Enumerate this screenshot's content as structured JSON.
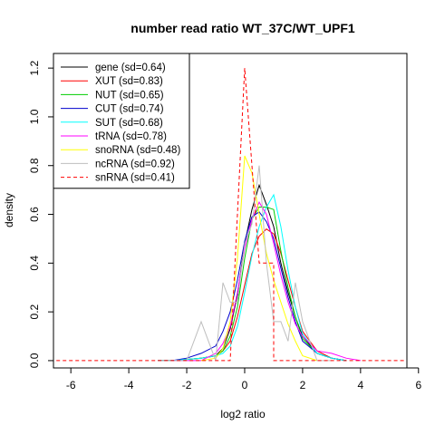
{
  "chart_data": {
    "type": "line",
    "title": "number read ratio WT_37C/WT_UPF1",
    "xlabel": "log2 ratio",
    "ylabel": "density",
    "xlim": [
      -6.6,
      5.6
    ],
    "ylim": [
      -0.03,
      1.26
    ],
    "xticks": [
      -6,
      -4,
      -2,
      0,
      2,
      4,
      6
    ],
    "yticks": [
      0.0,
      0.2,
      0.4,
      0.6,
      0.8,
      1.0,
      1.2
    ],
    "xtick_labels": [
      "-6",
      "-4",
      "-2",
      "0",
      "2",
      "4",
      "6"
    ],
    "ytick_labels": [
      "0.0",
      "0.2",
      "0.4",
      "0.6",
      "0.8",
      "1.0",
      "1.2"
    ],
    "legend_position": "top-left",
    "grid": false,
    "series": [
      {
        "name": "gene (sd=0.64)",
        "color": "#000000",
        "dash": false,
        "x": [
          -3.0,
          -2.5,
          -2.0,
          -1.5,
          -1.0,
          -0.75,
          -0.5,
          -0.25,
          0.0,
          0.25,
          0.5,
          0.75,
          1.0,
          1.25,
          1.5,
          1.75,
          2.0,
          2.5,
          3.0,
          3.5
        ],
        "y": [
          0.0,
          0.0,
          0.005,
          0.01,
          0.02,
          0.05,
          0.13,
          0.27,
          0.48,
          0.62,
          0.72,
          0.64,
          0.55,
          0.4,
          0.28,
          0.18,
          0.1,
          0.03,
          0.01,
          0.0
        ]
      },
      {
        "name": "XUT (sd=0.83)",
        "color": "#ff0000",
        "dash": false,
        "x": [
          -3.0,
          -2.5,
          -2.0,
          -1.5,
          -1.0,
          -0.75,
          -0.5,
          -0.25,
          0.0,
          0.25,
          0.5,
          0.75,
          1.0,
          1.25,
          1.5,
          1.75,
          2.0,
          2.5,
          3.0,
          3.5
        ],
        "y": [
          0.0,
          0.0,
          0.005,
          0.01,
          0.02,
          0.04,
          0.08,
          0.18,
          0.31,
          0.44,
          0.51,
          0.54,
          0.52,
          0.44,
          0.33,
          0.22,
          0.12,
          0.04,
          0.01,
          0.0
        ]
      },
      {
        "name": "NUT (sd=0.65)",
        "color": "#00cd00",
        "dash": false,
        "x": [
          -3.0,
          -2.5,
          -2.0,
          -1.5,
          -1.0,
          -0.75,
          -0.5,
          -0.25,
          0.0,
          0.25,
          0.5,
          0.75,
          1.0,
          1.25,
          1.5,
          1.75,
          2.0,
          2.5,
          3.0,
          3.5
        ],
        "y": [
          0.0,
          0.0,
          0.005,
          0.01,
          0.02,
          0.04,
          0.1,
          0.22,
          0.42,
          0.58,
          0.63,
          0.63,
          0.62,
          0.45,
          0.3,
          0.18,
          0.09,
          0.03,
          0.01,
          0.0
        ]
      },
      {
        "name": "CUT (sd=0.74)",
        "color": "#0000cd",
        "dash": false,
        "x": [
          -3.0,
          -2.5,
          -2.0,
          -1.5,
          -1.0,
          -0.75,
          -0.5,
          -0.25,
          0.0,
          0.25,
          0.5,
          0.75,
          1.0,
          1.25,
          1.5,
          1.75,
          2.0,
          2.5,
          3.0,
          3.5
        ],
        "y": [
          0.0,
          0.0,
          0.01,
          0.03,
          0.06,
          0.12,
          0.2,
          0.33,
          0.49,
          0.59,
          0.61,
          0.57,
          0.5,
          0.38,
          0.26,
          0.16,
          0.08,
          0.03,
          0.01,
          0.0
        ]
      },
      {
        "name": "SUT (sd=0.68)",
        "color": "#00ffff",
        "dash": false,
        "x": [
          -3.0,
          -2.5,
          -2.0,
          -1.5,
          -1.0,
          -0.75,
          -0.5,
          -0.25,
          0.0,
          0.25,
          0.5,
          0.75,
          1.0,
          1.25,
          1.5,
          1.75,
          2.0,
          2.5,
          3.0,
          3.5
        ],
        "y": [
          0.0,
          0.0,
          0.005,
          0.01,
          0.02,
          0.03,
          0.06,
          0.14,
          0.28,
          0.43,
          0.55,
          0.63,
          0.68,
          0.55,
          0.37,
          0.22,
          0.11,
          0.03,
          0.01,
          0.0
        ]
      },
      {
        "name": "tRNA (sd=0.78)",
        "color": "#ff00ff",
        "dash": false,
        "x": [
          -2.5,
          -2.0,
          -1.5,
          -1.0,
          -0.75,
          -0.5,
          -0.25,
          0.0,
          0.25,
          0.5,
          0.75,
          1.0,
          1.25,
          1.5,
          1.75,
          2.0,
          2.5,
          3.0,
          3.5,
          4.0
        ],
        "y": [
          0.0,
          0.0,
          0.0,
          0.03,
          0.07,
          0.14,
          0.28,
          0.46,
          0.58,
          0.65,
          0.6,
          0.48,
          0.35,
          0.24,
          0.15,
          0.1,
          0.04,
          0.03,
          0.01,
          0.0
        ]
      },
      {
        "name": "snoRNA (sd=0.48)",
        "color": "#ffff00",
        "dash": false,
        "x": [
          -1.5,
          -1.0,
          -0.75,
          -0.5,
          -0.25,
          0.0,
          0.25,
          0.5,
          0.75,
          1.0,
          1.25,
          1.5,
          1.75,
          2.0,
          2.5
        ],
        "y": [
          0.0,
          0.01,
          0.05,
          0.16,
          0.42,
          0.84,
          0.77,
          0.6,
          0.44,
          0.33,
          0.24,
          0.15,
          0.08,
          0.02,
          0.0
        ]
      },
      {
        "name": "ncRNA (sd=0.92)",
        "color": "#bebebe",
        "dash": false,
        "x": [
          -3.0,
          -2.5,
          -2.0,
          -1.75,
          -1.5,
          -1.25,
          -1.0,
          -0.75,
          -0.5,
          -0.25,
          0.0,
          0.25,
          0.5,
          0.75,
          1.0,
          1.25,
          1.5,
          1.75,
          2.0,
          2.25,
          2.5,
          3.0
        ],
        "y": [
          0.0,
          0.0,
          0.0,
          0.08,
          0.16,
          0.08,
          0.0,
          0.32,
          0.24,
          0.24,
          0.48,
          0.56,
          0.8,
          0.4,
          0.16,
          0.16,
          0.08,
          0.32,
          0.16,
          0.08,
          0.0,
          0.0
        ]
      },
      {
        "name": "snRNA (sd=0.41)",
        "color": "#ff0000",
        "dash": true,
        "x": [
          -6.5,
          -0.5,
          0.0,
          0.5,
          0.5,
          1.0,
          1.0,
          5.5
        ],
        "y": [
          0.0,
          0.0,
          1.2,
          0.4,
          0.4,
          0.4,
          0.0,
          0.0
        ]
      }
    ]
  }
}
